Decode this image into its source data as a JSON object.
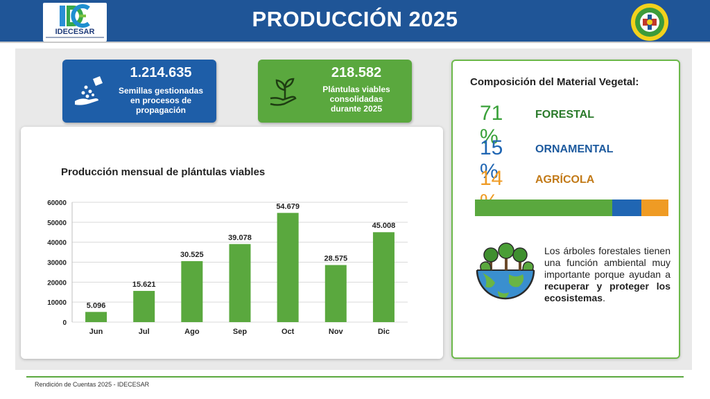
{
  "header": {
    "title": "PRODUCCIÓN 2025",
    "logo_text": "IDECESAR"
  },
  "kpis": [
    {
      "value": "1.214.635",
      "desc_line1": "Semillas gestionadas",
      "desc_line2": "en procesos de",
      "desc_line3": "propagación",
      "color": "#1e5ea8",
      "icon": "seeds-hand-icon"
    },
    {
      "value": "218.582",
      "desc_line1": "Plántulas viables",
      "desc_line2": "consolidadas",
      "desc_line3": "durante 2025",
      "color": "#5aa83e",
      "icon": "sprout-hand-icon"
    }
  ],
  "chart_data": {
    "type": "bar",
    "title": "Producción mensual de plántulas viables",
    "categories": [
      "Jun",
      "Jul",
      "Ago",
      "Sep",
      "Oct",
      "Nov",
      "Dic"
    ],
    "values": [
      5096,
      15621,
      30525,
      39078,
      54679,
      28575,
      45008
    ],
    "value_labels": [
      "5.096",
      "15.621",
      "30.525",
      "39.078",
      "54.679",
      "28.575",
      "45.008"
    ],
    "ylim": [
      0,
      60000
    ],
    "yticks": [
      0,
      10000,
      20000,
      30000,
      40000,
      50000,
      60000
    ],
    "grid": true,
    "bar_color": "#5aa83e",
    "xlabel": "",
    "ylabel": ""
  },
  "composition": {
    "title": "Composición del Material Vegetal:",
    "items": [
      {
        "pct": "71 %",
        "label": "FORESTAL",
        "value": 71,
        "color": "#5aa83e"
      },
      {
        "pct": "15 %",
        "label": "ORNAMENTAL",
        "value": 15,
        "color": "#2066b3"
      },
      {
        "pct": "14 %",
        "label": "AGRÍCOLA",
        "value": 14,
        "color": "#ef9b24"
      }
    ],
    "note_plain": "Los árboles forestales tienen una función ambiental muy importante porque ayudan a ",
    "note_bold": "recuperar y proteger los ecosistemas",
    "note_end": "."
  },
  "footer": {
    "text": "Rendición de Cuentas 2025 - IDECESAR"
  }
}
